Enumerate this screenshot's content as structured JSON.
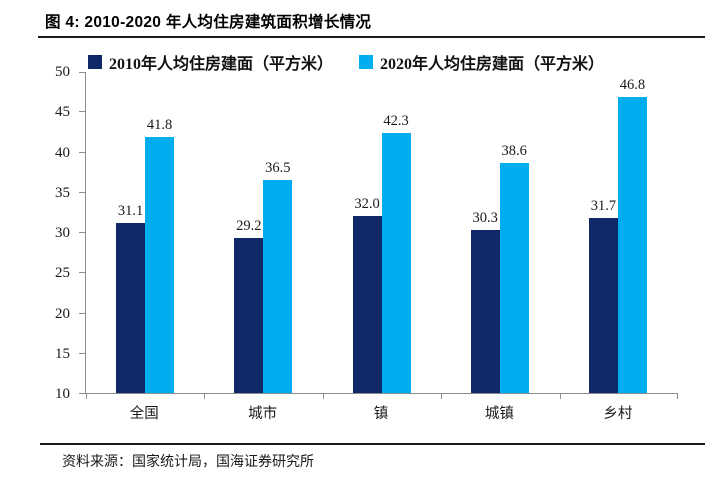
{
  "title": "图 4: 2010-2020 年人均住房建筑面积增长情况",
  "source_note": "资料来源：国家统计局，国海证券研究所",
  "chart_data": {
    "type": "bar",
    "title": "2010-2020 年人均住房建筑面积增长情况",
    "categories": [
      "全国",
      "城市",
      "镇",
      "城镇",
      "乡村"
    ],
    "series": [
      {
        "name": "2010年人均住房建面（平方米）",
        "year": "2010",
        "color": "#0E2966",
        "values": [
          31.1,
          29.2,
          32.0,
          30.3,
          31.7
        ]
      },
      {
        "name": "2020年人均住房建面（平方米）",
        "year": "2020",
        "color": "#00AEEF",
        "values": [
          41.8,
          36.5,
          42.3,
          38.6,
          46.8
        ]
      }
    ],
    "xlabel": "",
    "ylabel": "",
    "ylim": [
      10,
      50
    ],
    "yticks": [
      10,
      15,
      20,
      25,
      30,
      35,
      40,
      45,
      50
    ],
    "grid": false,
    "legend_position": "top",
    "value_labels": true,
    "value_label_decimals": 1
  },
  "colors": {
    "series_2010": "#0E2966",
    "series_2020": "#00AEEF",
    "axis": "#8C8C8C",
    "text": "#1A1A1A",
    "rule": "#1A1A1A",
    "background": "#FFFFFF"
  }
}
